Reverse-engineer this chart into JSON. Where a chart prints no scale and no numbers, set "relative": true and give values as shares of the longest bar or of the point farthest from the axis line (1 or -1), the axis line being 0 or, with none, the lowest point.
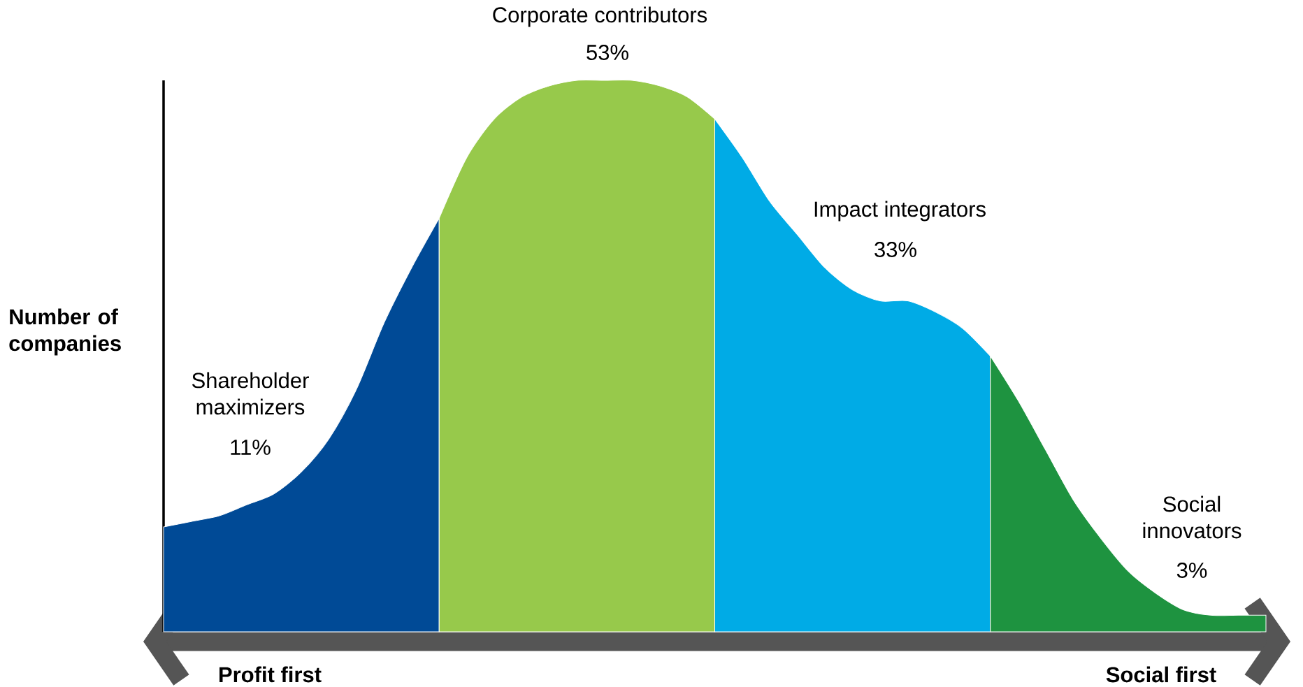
{
  "chart_data": {
    "type": "area",
    "relative": true,
    "ylabel": "Number of companies",
    "categories": [
      null,
      null,
      null,
      null,
      null,
      null,
      null,
      null,
      null,
      null,
      null,
      null,
      null,
      null,
      null,
      null,
      null,
      null,
      null,
      null,
      null,
      null,
      null,
      null,
      null,
      null,
      null,
      null,
      null,
      null,
      null,
      null,
      null,
      null,
      null,
      null,
      null,
      null,
      null,
      null,
      null
    ],
    "series": [
      {
        "name": "Shareholder maximizers",
        "color": "#004a96",
        "values": [
          0.19,
          0.2,
          0.21,
          0.23,
          0.25,
          0.29,
          0.35,
          0.44,
          0.56,
          0.66,
          0.75,
          null,
          null,
          null,
          null,
          null,
          null,
          null,
          null,
          null,
          null,
          null,
          null,
          null,
          null,
          null,
          null,
          null,
          null,
          null,
          null,
          null,
          null,
          null,
          null,
          null,
          null,
          null,
          null,
          null,
          null
        ]
      },
      {
        "name": "Corporate contributors",
        "color": "#97c94b",
        "values": [
          null,
          null,
          null,
          null,
          null,
          null,
          null,
          null,
          null,
          null,
          0.75,
          0.86,
          0.93,
          0.97,
          0.99,
          1.0,
          1.0,
          1.0,
          0.99,
          0.97,
          0.93,
          null,
          null,
          null,
          null,
          null,
          null,
          null,
          null,
          null,
          null,
          null,
          null,
          null,
          null,
          null,
          null,
          null,
          null,
          null,
          null
        ]
      },
      {
        "name": "Impact integrators",
        "color": "#00abe6",
        "values": [
          null,
          null,
          null,
          null,
          null,
          null,
          null,
          null,
          null,
          null,
          null,
          null,
          null,
          null,
          null,
          null,
          null,
          null,
          null,
          null,
          0.93,
          0.86,
          0.78,
          0.72,
          0.66,
          0.62,
          0.6,
          0.6,
          0.58,
          0.55,
          0.5,
          null,
          null,
          null,
          null,
          null,
          null,
          null,
          null,
          null,
          null
        ]
      },
      {
        "name": "Social innovators",
        "color": "#1e9340",
        "values": [
          null,
          null,
          null,
          null,
          null,
          null,
          null,
          null,
          null,
          null,
          null,
          null,
          null,
          null,
          null,
          null,
          null,
          null,
          null,
          null,
          null,
          null,
          null,
          null,
          null,
          null,
          null,
          null,
          null,
          null,
          0.5,
          0.42,
          0.33,
          0.24,
          0.17,
          0.11,
          0.07,
          0.04,
          0.03,
          0.03,
          0.03
        ]
      }
    ],
    "annotations": [
      "11%",
      "53%",
      "33%",
      "3%",
      "Profit first",
      "Social first"
    ]
  }
}
